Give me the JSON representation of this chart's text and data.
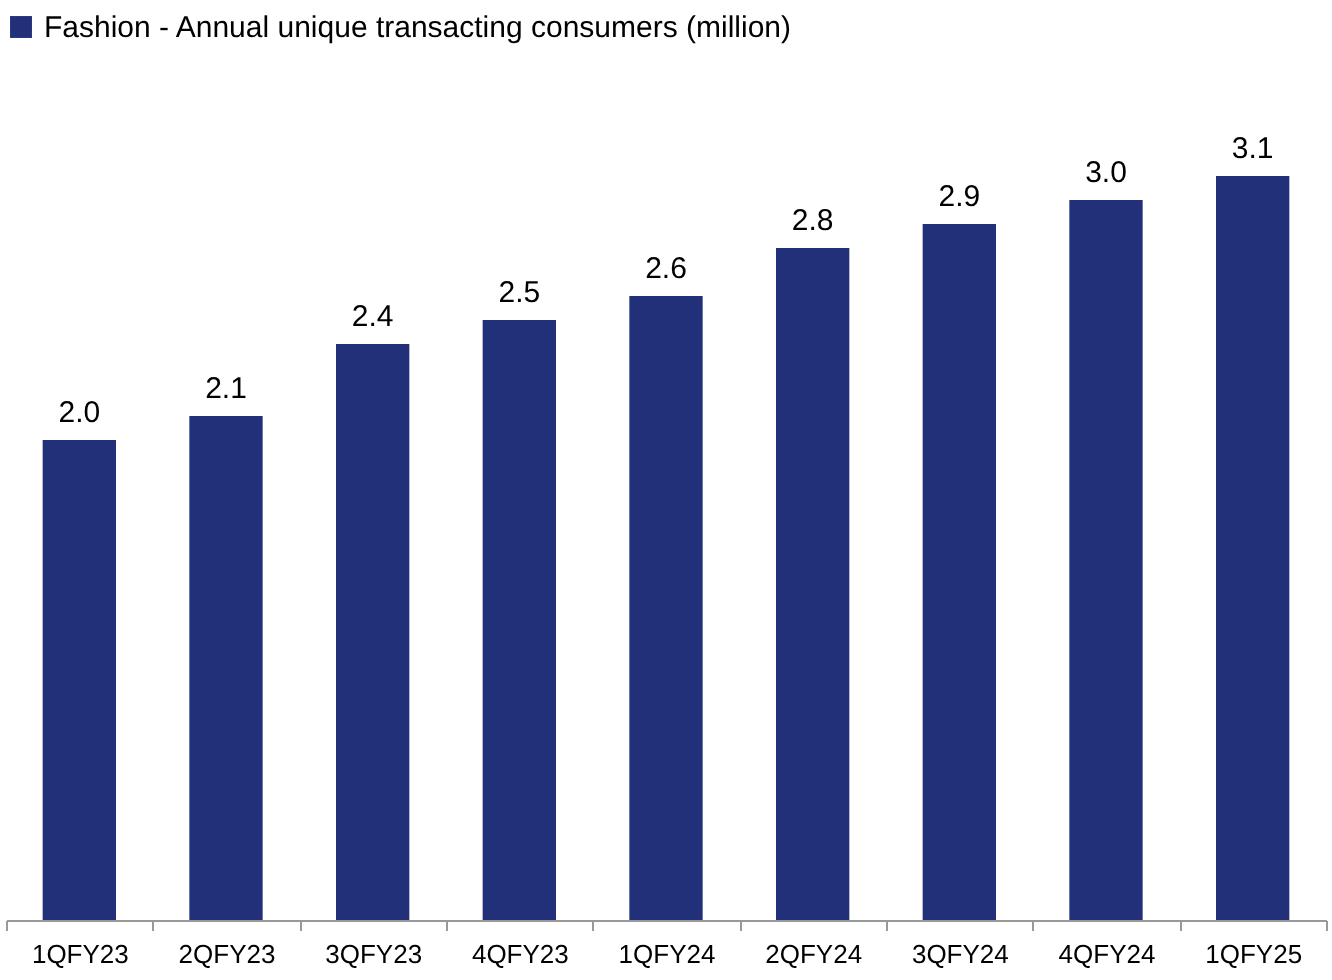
{
  "chart_data": {
    "type": "bar",
    "categories": [
      "1QFY23",
      "2QFY23",
      "3QFY23",
      "4QFY23",
      "1QFY24",
      "2QFY24",
      "3QFY24",
      "4QFY24",
      "1QFY25"
    ],
    "series": [
      {
        "name": "Fashion - Annual unique transacting consumers (million)",
        "color": "#22307a",
        "values": [
          2.0,
          2.1,
          2.4,
          2.5,
          2.6,
          2.8,
          2.9,
          3.0,
          3.1
        ],
        "value_labels": [
          "2.0",
          "2.1",
          "2.4",
          "2.5",
          "2.6",
          "2.8",
          "2.9",
          "3.0",
          "3.1"
        ]
      }
    ],
    "legend": "top",
    "tick_labels": "x"
  }
}
